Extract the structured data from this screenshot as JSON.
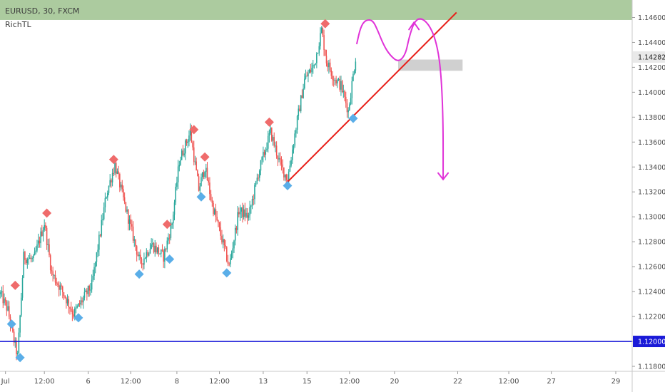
{
  "header": {
    "symbol": "EURUSD, 30, FXCM",
    "indicator": "RichTL"
  },
  "colors": {
    "up": "#26a69a",
    "down": "#ef5350",
    "bg": "#ffffff",
    "axis_text": "#4a4a4a",
    "zone": "#a8c89a",
    "support": "#1a1ad8",
    "trendline": "#e8201a",
    "projection": "#e033d8",
    "pivot_high": "#ef6b6b",
    "pivot_low": "#5aaee8",
    "target_box": "#c8c8c8"
  },
  "chart_data": {
    "type": "candlestick",
    "title": "EURUSD, 30, FXCM",
    "indicator": "RichTL",
    "ylim": [
      1.1176,
      1.1474
    ],
    "y_ticks": [
      "1.11800",
      "1.12000",
      "1.12200",
      "1.12400",
      "1.12600",
      "1.12800",
      "1.13000",
      "1.13200",
      "1.13400",
      "1.13600",
      "1.13800",
      "1.14000",
      "1.14200",
      "1.14400",
      "1.14600"
    ],
    "x_ticks": [
      {
        "label": "Jul",
        "i": 4
      },
      {
        "label": "12:00",
        "i": 36
      },
      {
        "label": "6",
        "i": 72
      },
      {
        "label": "12:00",
        "i": 107
      },
      {
        "label": "8",
        "i": 145
      },
      {
        "label": "12:00",
        "i": 180
      },
      {
        "label": "13",
        "i": 216
      },
      {
        "label": "15",
        "i": 252
      },
      {
        "label": "12:00",
        "i": 287
      },
      {
        "label": "20",
        "i": 324
      },
      {
        "label": "22",
        "i": 376
      },
      {
        "label": "12:00",
        "i": 418
      },
      {
        "label": "27",
        "i": 453
      },
      {
        "label": "29",
        "i": 506
      }
    ],
    "bars_total": 520,
    "last_candle_index": 292,
    "current_price": {
      "label": "1.14282",
      "value": 1.14282
    },
    "support_line": {
      "label": "1.12000",
      "value": 1.12
    },
    "resistance_zone": {
      "from": 1.1458,
      "to": 1.1474
    },
    "target_box": {
      "from_i": 327,
      "to_i": 380,
      "top": 1.14262,
      "bottom": 1.14172
    },
    "trendline": {
      "from": {
        "i": 236,
        "price": 1.1328
      },
      "to": {
        "i": 375,
        "price": 1.1464
      }
    },
    "anchors": [
      {
        "i": 0,
        "p": 1.1238
      },
      {
        "i": 6,
        "p": 1.1225
      },
      {
        "i": 10,
        "p": 1.1205
      },
      {
        "i": 14,
        "p": 1.1188
      },
      {
        "i": 19,
        "p": 1.1268
      },
      {
        "i": 27,
        "p": 1.1265
      },
      {
        "i": 36,
        "p": 1.1295
      },
      {
        "i": 42,
        "p": 1.1255
      },
      {
        "i": 52,
        "p": 1.1238
      },
      {
        "i": 60,
        "p": 1.1222
      },
      {
        "i": 75,
        "p": 1.1245
      },
      {
        "i": 87,
        "p": 1.1318
      },
      {
        "i": 94,
        "p": 1.1342
      },
      {
        "i": 102,
        "p": 1.131
      },
      {
        "i": 115,
        "p": 1.1262
      },
      {
        "i": 124,
        "p": 1.1278
      },
      {
        "i": 134,
        "p": 1.1268
      },
      {
        "i": 141,
        "p": 1.1295
      },
      {
        "i": 147,
        "p": 1.1345
      },
      {
        "i": 156,
        "p": 1.1368
      },
      {
        "i": 163,
        "p": 1.1322
      },
      {
        "i": 168,
        "p": 1.134
      },
      {
        "i": 174,
        "p": 1.131
      },
      {
        "i": 184,
        "p": 1.1275
      },
      {
        "i": 188,
        "p": 1.126
      },
      {
        "i": 196,
        "p": 1.1305
      },
      {
        "i": 204,
        "p": 1.13
      },
      {
        "i": 212,
        "p": 1.1335
      },
      {
        "i": 222,
        "p": 1.1368
      },
      {
        "i": 230,
        "p": 1.1342
      },
      {
        "i": 236,
        "p": 1.133
      },
      {
        "i": 243,
        "p": 1.1372
      },
      {
        "i": 250,
        "p": 1.141
      },
      {
        "i": 258,
        "p": 1.1422
      },
      {
        "i": 264,
        "p": 1.145
      },
      {
        "i": 268,
        "p": 1.1425
      },
      {
        "i": 274,
        "p": 1.1412
      },
      {
        "i": 280,
        "p": 1.1405
      },
      {
        "i": 286,
        "p": 1.1385
      },
      {
        "i": 292,
        "p": 1.1428
      }
    ],
    "pivots": [
      {
        "type": "high",
        "i": 12,
        "price": 1.1245
      },
      {
        "type": "low",
        "i": 9,
        "price": 1.1214
      },
      {
        "type": "low",
        "i": 16,
        "price": 1.1187
      },
      {
        "type": "high",
        "i": 38,
        "price": 1.1303
      },
      {
        "type": "low",
        "i": 64,
        "price": 1.1219
      },
      {
        "type": "high",
        "i": 93,
        "price": 1.1346
      },
      {
        "type": "low",
        "i": 114,
        "price": 1.1254
      },
      {
        "type": "high",
        "i": 137,
        "price": 1.1294
      },
      {
        "type": "low",
        "i": 139,
        "price": 1.1266
      },
      {
        "type": "high",
        "i": 159,
        "price": 1.137
      },
      {
        "type": "high",
        "i": 168,
        "price": 1.1348
      },
      {
        "type": "low",
        "i": 165,
        "price": 1.1316
      },
      {
        "type": "low",
        "i": 186,
        "price": 1.1255
      },
      {
        "type": "high",
        "i": 221,
        "price": 1.1376
      },
      {
        "type": "low",
        "i": 236,
        "price": 1.1325
      },
      {
        "type": "high",
        "i": 267,
        "price": 1.1455
      },
      {
        "type": "low",
        "i": 290,
        "price": 1.1379
      }
    ],
    "projection_path": [
      {
        "i": 293,
        "p": 1.1439
      },
      {
        "i": 296,
        "p": 1.1452
      },
      {
        "i": 300,
        "p": 1.1458
      },
      {
        "i": 306,
        "p": 1.1458
      },
      {
        "i": 310,
        "p": 1.145
      },
      {
        "i": 315,
        "p": 1.1438
      },
      {
        "i": 320,
        "p": 1.143
      },
      {
        "i": 327,
        "p": 1.1424
      },
      {
        "i": 333,
        "p": 1.143
      },
      {
        "i": 336,
        "p": 1.1444
      },
      {
        "i": 340,
        "p": 1.1456
      },
      {
        "i": 345,
        "p": 1.146
      },
      {
        "i": 352,
        "p": 1.1455
      },
      {
        "i": 358,
        "p": 1.1442
      },
      {
        "i": 362,
        "p": 1.142
      },
      {
        "i": 364,
        "p": 1.138
      },
      {
        "i": 364,
        "p": 1.133
      }
    ]
  }
}
